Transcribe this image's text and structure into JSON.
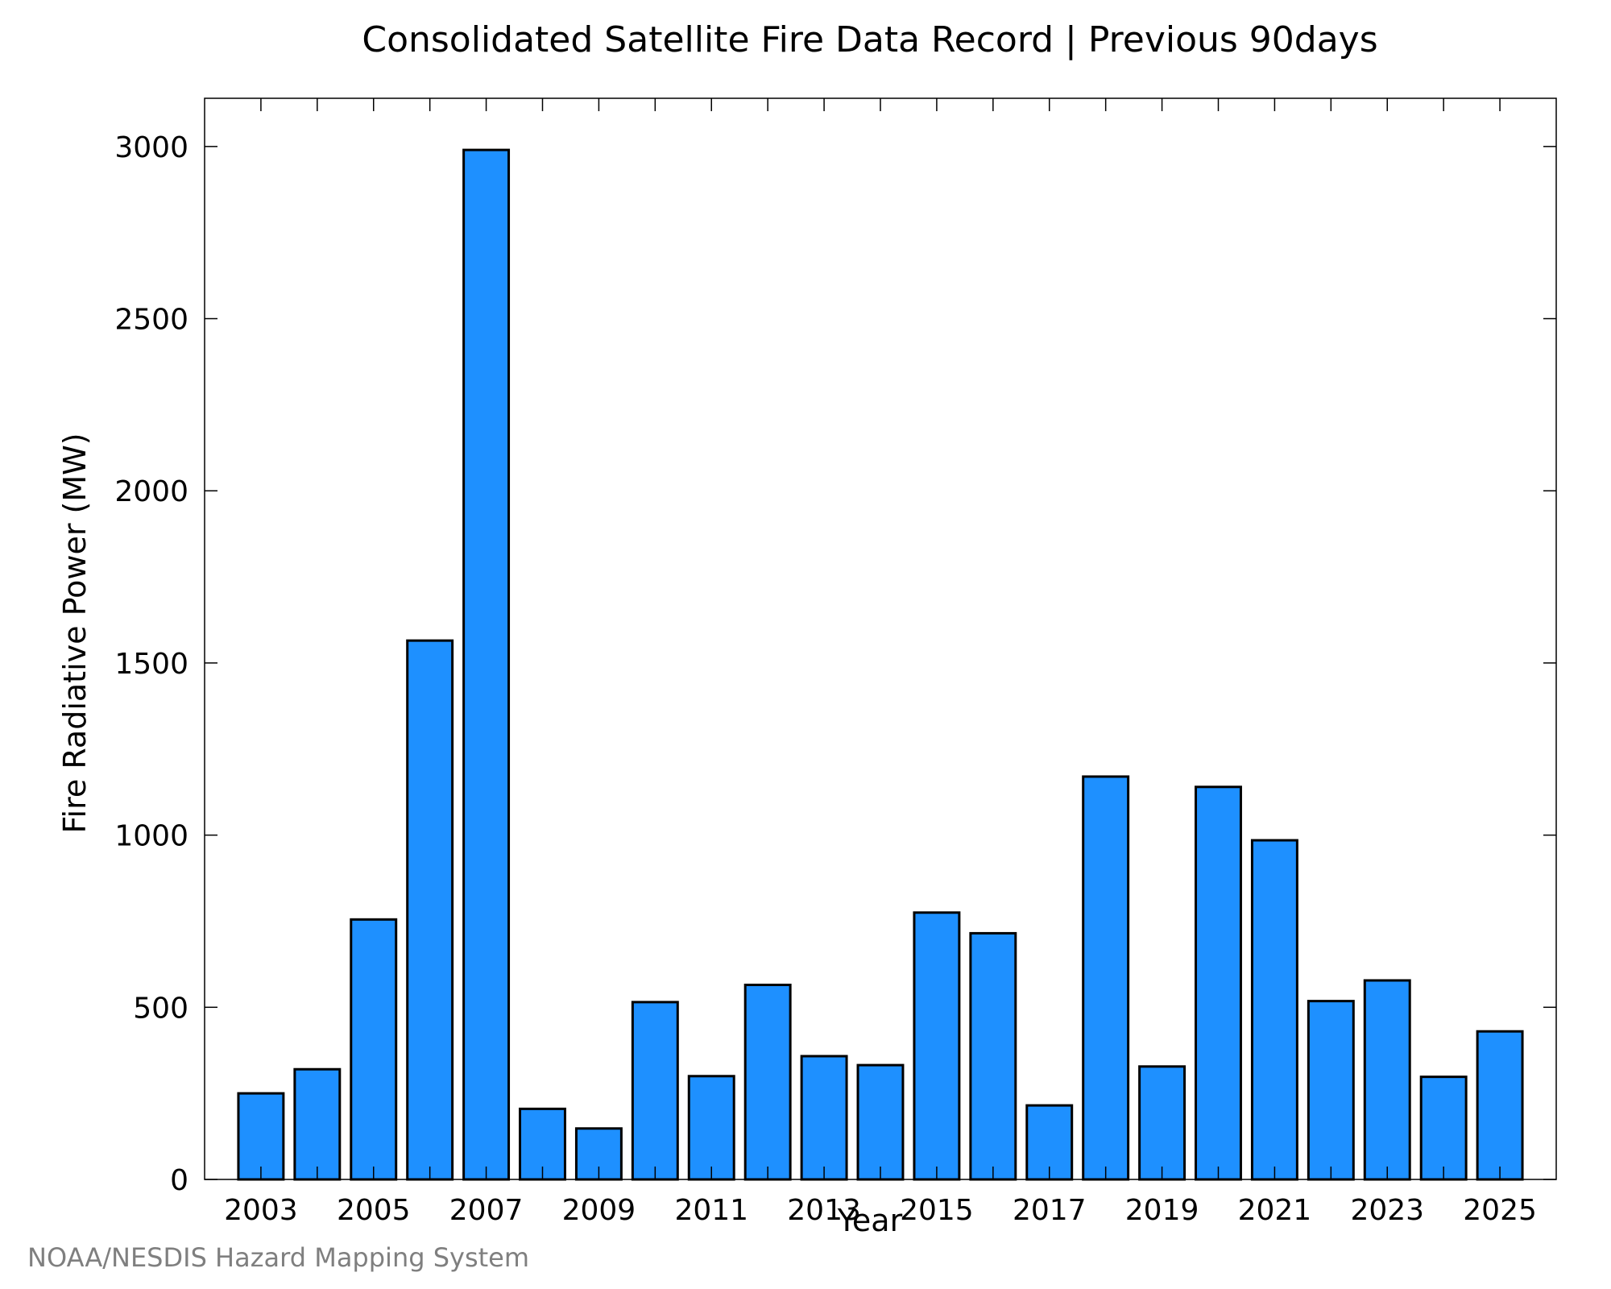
{
  "chart_data": {
    "type": "bar",
    "title": "Consolidated Satellite Fire Data Record | Previous 90days",
    "xlabel": "Year",
    "ylabel": "Fire Radiative Power (MW)",
    "categories": [
      2003,
      2004,
      2005,
      2006,
      2007,
      2008,
      2009,
      2010,
      2011,
      2012,
      2013,
      2014,
      2015,
      2016,
      2017,
      2018,
      2019,
      2020,
      2021,
      2022,
      2023,
      2024,
      2025
    ],
    "values": [
      250,
      320,
      755,
      1565,
      2990,
      205,
      148,
      515,
      300,
      565,
      358,
      332,
      775,
      715,
      215,
      1170,
      328,
      1140,
      985,
      518,
      578,
      298,
      430
    ],
    "x_ticks": [
      2003,
      2005,
      2007,
      2009,
      2011,
      2013,
      2015,
      2017,
      2019,
      2021,
      2023,
      2025
    ],
    "x_tick_labels": [
      "2003",
      "2005",
      "2007",
      "2009",
      "2011",
      "2013",
      "2015",
      "2017",
      "2019",
      "2021",
      "2023",
      "2025"
    ],
    "y_ticks": [
      0,
      500,
      1000,
      1500,
      2000,
      2500,
      3000
    ],
    "y_tick_labels": [
      "0",
      "500",
      "1000",
      "1500",
      "2000",
      "2500",
      "3000"
    ],
    "xlim": [
      2002,
      2026
    ],
    "ylim": [
      0,
      3140
    ],
    "grid": false,
    "bar_color": "#1e90ff",
    "bar_edge_color": "#000000"
  },
  "footer": {
    "credit": "NOAA/NESDIS Hazard Mapping System"
  }
}
